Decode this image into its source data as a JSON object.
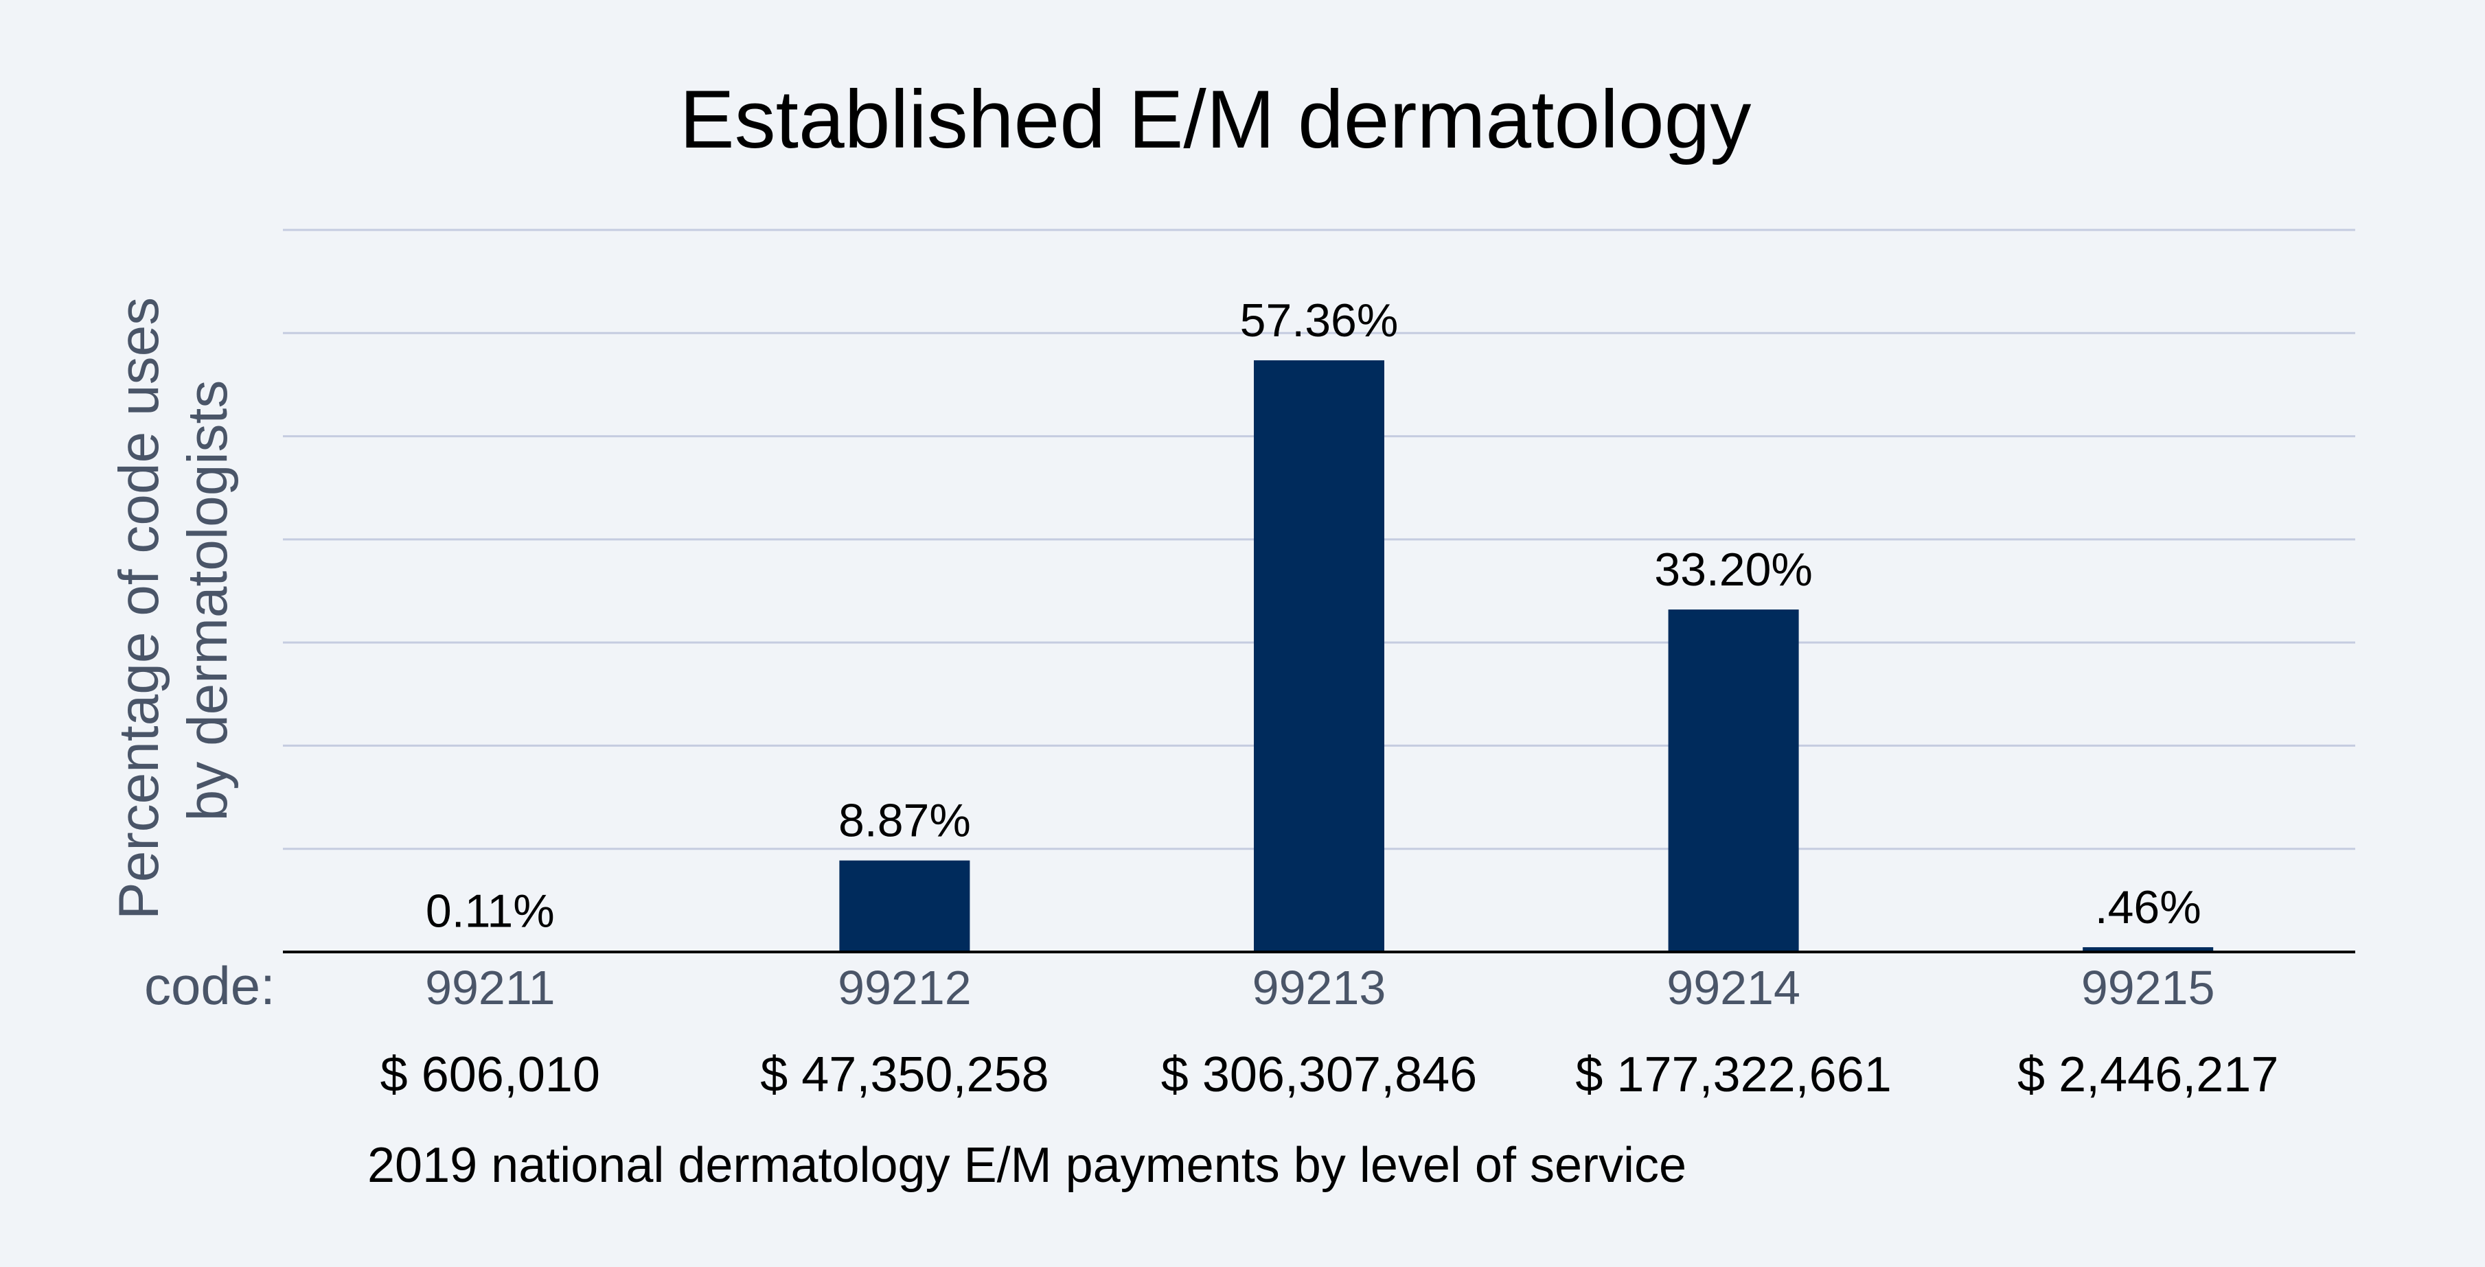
{
  "chart_data": {
    "type": "bar",
    "title": "Established E/M dermatology",
    "ylabel": [
      "Percentage of code uses",
      "by dermatologists"
    ],
    "code_prefix": "code:",
    "categories": [
      "99211",
      "99212",
      "99213",
      "99214",
      "99215"
    ],
    "values": [
      0.11,
      8.87,
      57.36,
      33.2,
      0.46
    ],
    "value_labels": [
      "0.11%",
      "8.87%",
      "57.36%",
      "33.20%",
      ".46%"
    ],
    "payments": [
      "$ 606,010",
      "$ 47,350,258",
      "$ 306,307,846",
      "$ 177,322,661",
      "$ 2,446,217"
    ],
    "subtitle": "2019 national dermatology E/M payments by level of service",
    "ylim": [
      0,
      70
    ],
    "grid_step": 10,
    "grid": true,
    "bar_color": "#002b5c",
    "grid_color": "#c5cce0",
    "axis_color": "#000000"
  }
}
